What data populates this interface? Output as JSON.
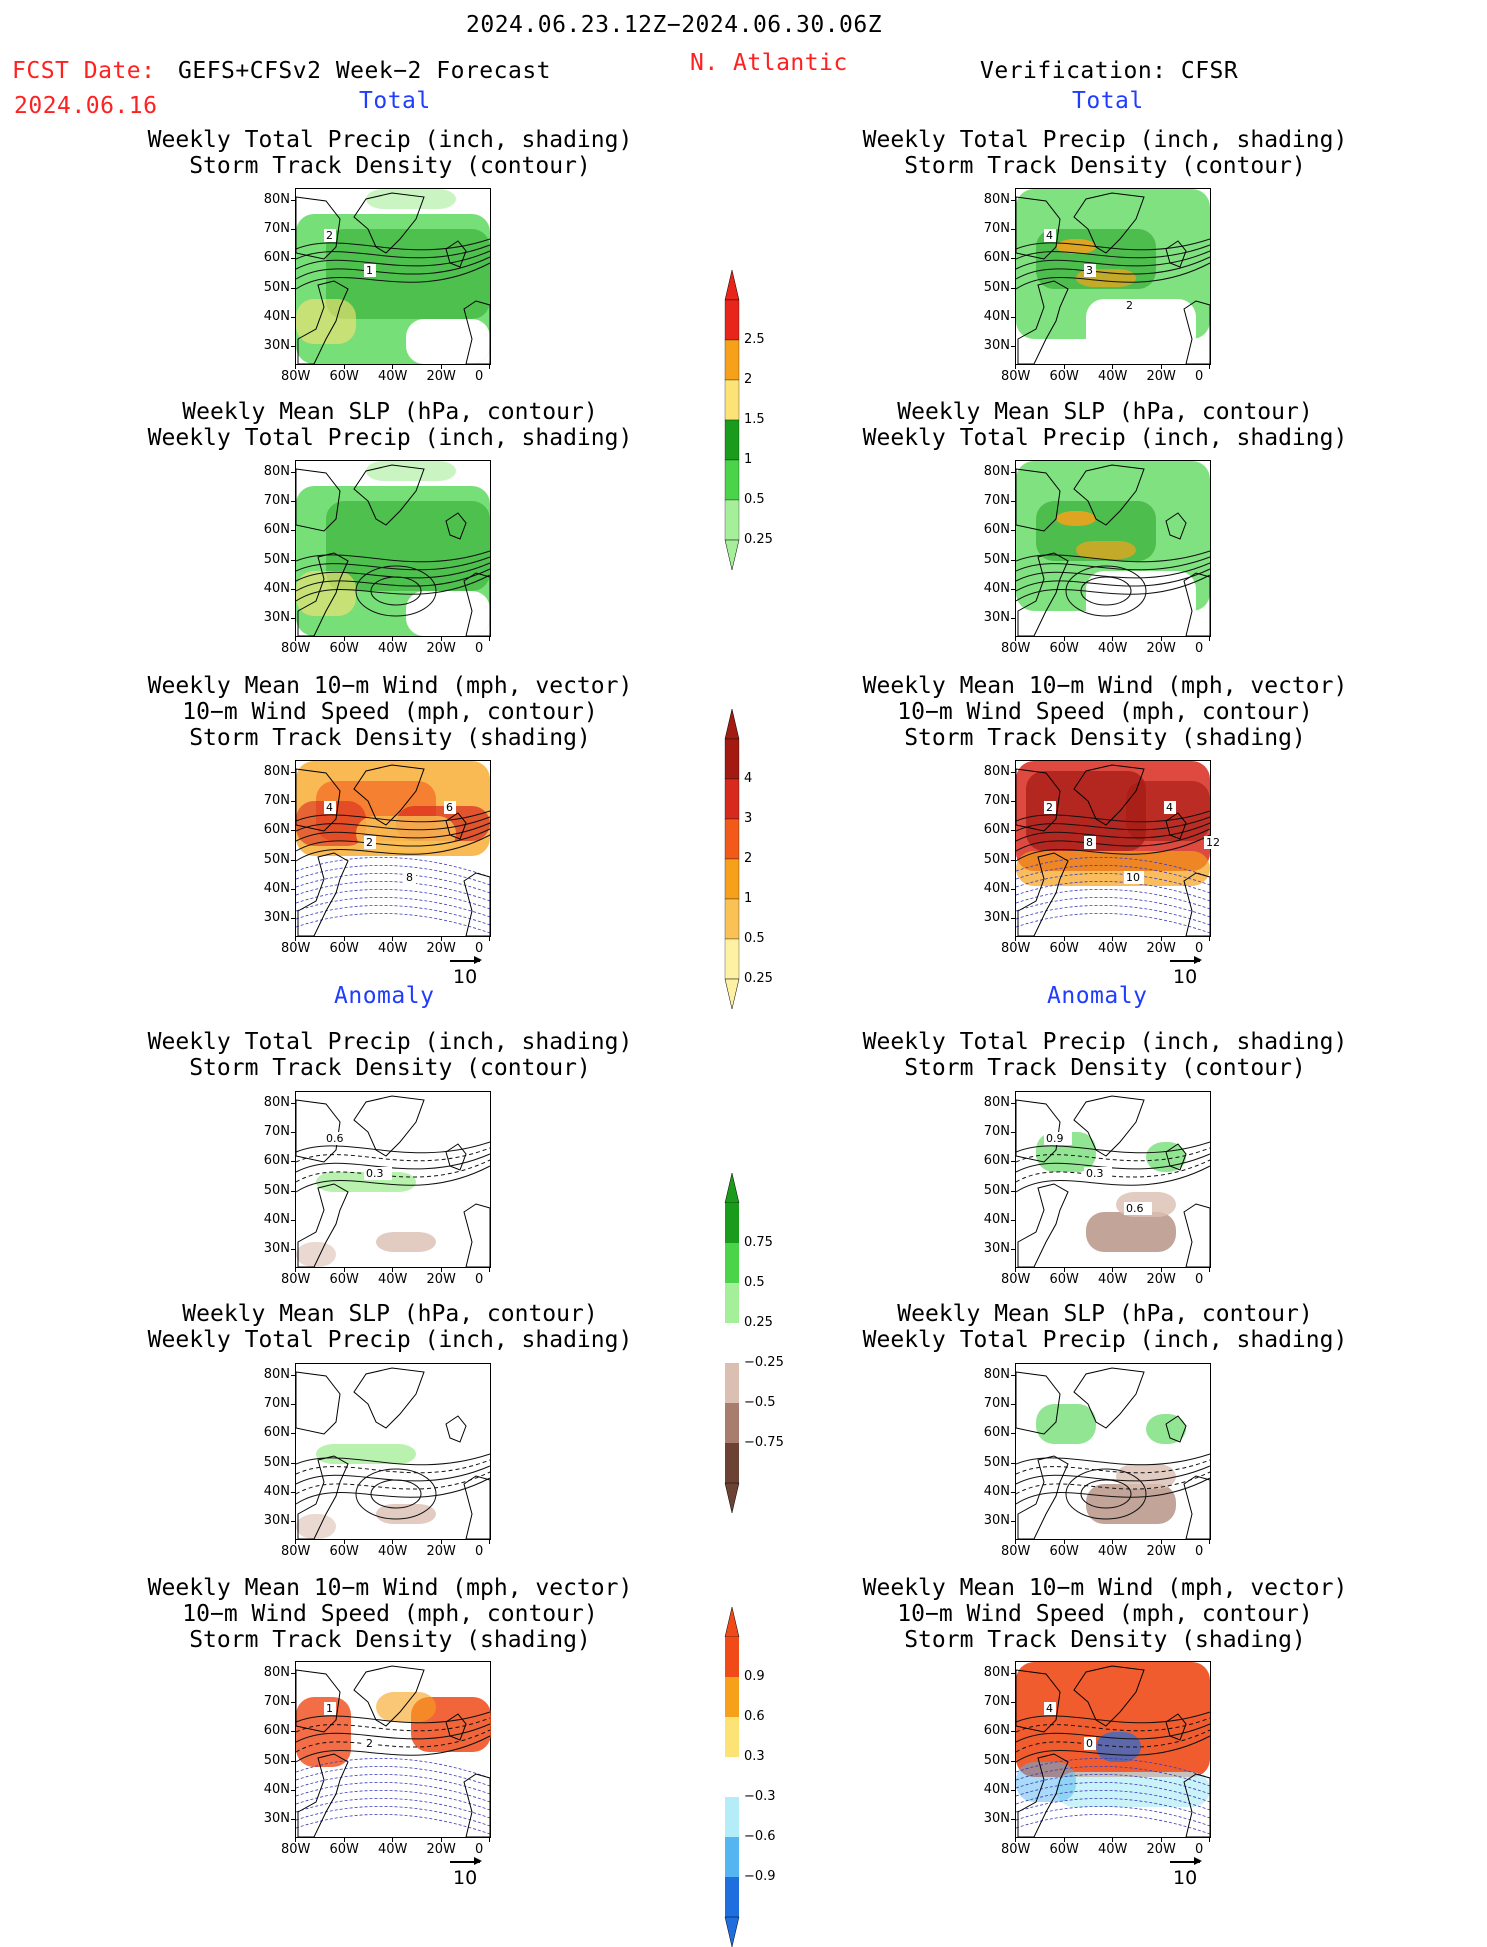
{
  "header": {
    "title": "2024.06.23.12Z−2024.06.30.06Z",
    "fcst_label": "FCST Date:",
    "fcst_date": "2024.06.16",
    "model": "GEFS+CFSv2 Week−2 Forecast",
    "region": "N. Atlantic",
    "verification": "Verification: CFSR"
  },
  "sections": {
    "total": "Total",
    "anomaly": "Anomaly"
  },
  "axes": {
    "lat_labels": [
      "80N",
      "70N",
      "60N",
      "50N",
      "40N",
      "30N"
    ],
    "lon_labels": [
      "80W",
      "60W",
      "40W",
      "20W",
      "0"
    ]
  },
  "vector_reference": "10",
  "panels": [
    {
      "line1": "Weekly Total Precip (inch, shading)",
      "line2": "Storm Track Density (contour)",
      "line3": ""
    },
    {
      "line1": "Weekly Mean SLP (hPa, contour)",
      "line2": "Weekly Total Precip (inch, shading)",
      "line3": ""
    },
    {
      "line1": "Weekly Mean 10−m Wind (mph, vector)",
      "line2": "10−m Wind Speed (mph, contour)",
      "line3": "Storm Track Density (shading)"
    }
  ],
  "colorbars": {
    "precip_total": {
      "labels": [
        "2.5",
        "2",
        "1.5",
        "1",
        "0.5",
        "0.25"
      ],
      "colors": [
        "#e8251a",
        "#f7a11a",
        "#fde276",
        "#1b9b1b",
        "#49d449",
        "#a6ef9a"
      ]
    },
    "storm_total": {
      "labels": [
        "4",
        "3",
        "2",
        "1",
        "0.5",
        "0.25"
      ],
      "colors": [
        "#a31a13",
        "#d8291e",
        "#f35a1a",
        "#f7a11a",
        "#fac155",
        "#fef1a3"
      ]
    },
    "precip_anom": {
      "labels": [
        "0.75",
        "0.5",
        "0.25",
        "−0.25",
        "−0.5",
        "−0.75"
      ],
      "colors_pos": [
        "#1b9b1b",
        "#49d449",
        "#a6ef9a"
      ],
      "colors_neg": [
        "#dbbfb3",
        "#a87d6e",
        "#6b4234"
      ]
    },
    "storm_anom": {
      "labels": [
        "0.9",
        "0.6",
        "0.3",
        "−0.3",
        "−0.6",
        "−0.9"
      ],
      "colors_pos": [
        "#f04a18",
        "#f7a11a",
        "#fde276"
      ],
      "colors_neg": [
        "#b4ecf7",
        "#55b5f0",
        "#1e6ee0"
      ]
    }
  },
  "contour_labels": {
    "p0L": [
      "2",
      "1"
    ],
    "p0R": [
      "4",
      "3",
      "2"
    ],
    "p2L": [
      "4",
      "2",
      "8",
      "6"
    ],
    "p2R": [
      "2",
      "8",
      "10",
      "4",
      "12"
    ],
    "p3L": [
      "0.6",
      "0.3"
    ],
    "p3R": [
      "0.9",
      "0.3",
      "0.6"
    ],
    "p5L": [
      "1",
      "2"
    ],
    "p5R": [
      "4",
      "0"
    ]
  }
}
